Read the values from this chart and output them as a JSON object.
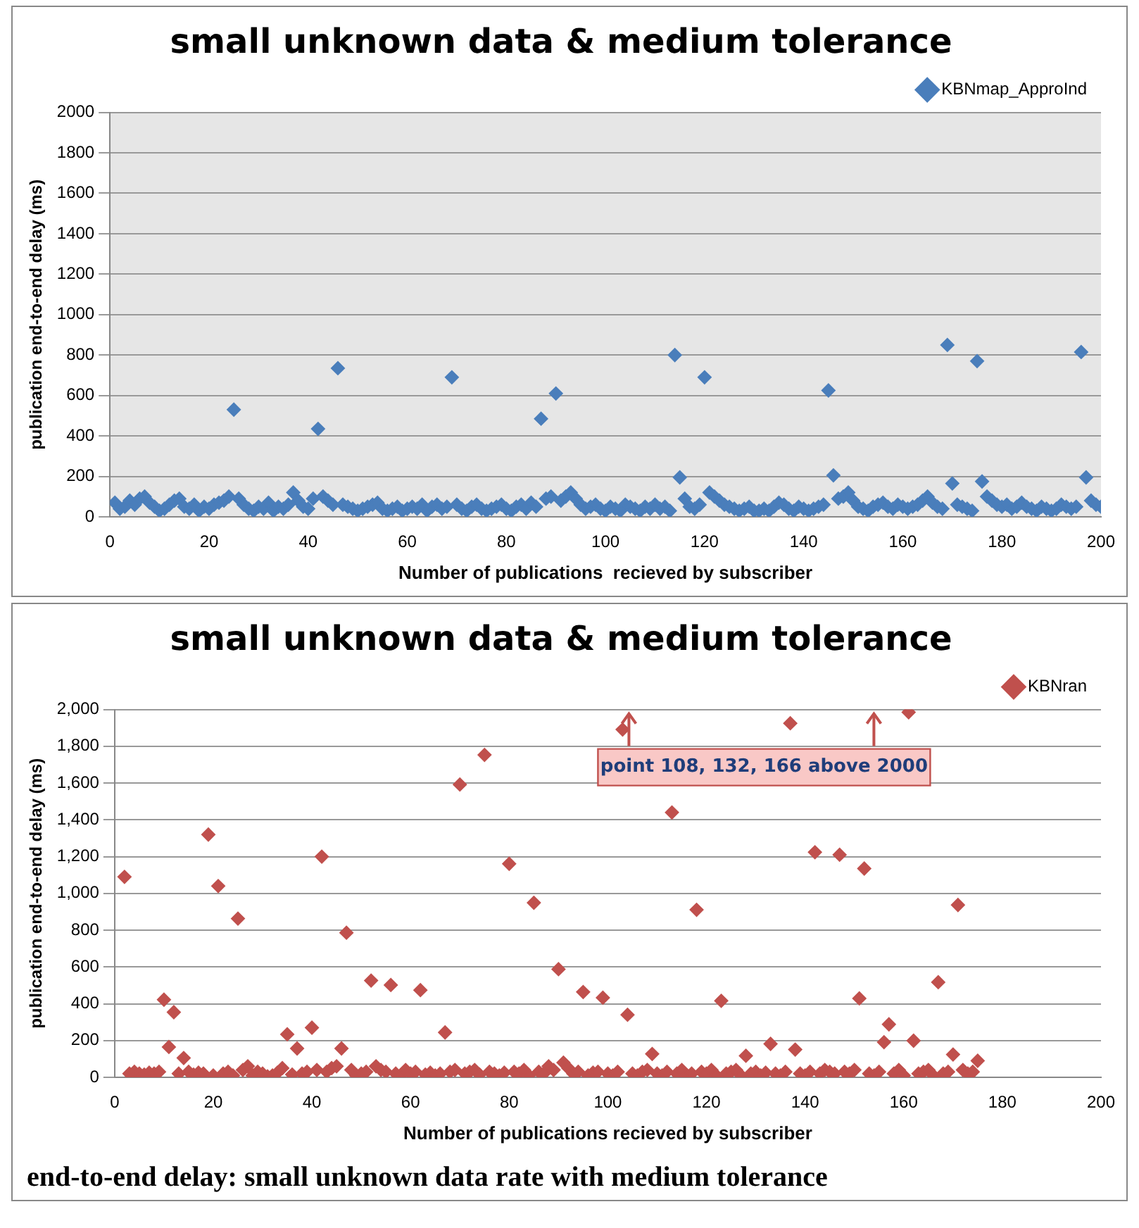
{
  "chart_data": [
    {
      "type": "scatter",
      "title": "small unknown data & medium tolerance",
      "xlabel": "Number of publications  recieved by subscriber",
      "ylabel": "publication end-to-end delay (ms)",
      "xlim": [
        0,
        200
      ],
      "xticks": [
        0,
        20,
        40,
        60,
        80,
        100,
        120,
        140,
        160,
        180,
        200
      ],
      "ylim": [
        0,
        2000
      ],
      "yticks": [
        0,
        200,
        400,
        600,
        800,
        1000,
        1200,
        1400,
        1600,
        1800,
        2000
      ],
      "grid": "y",
      "legend": "top right",
      "marker": "diamond",
      "series": [
        {
          "name": "KBNmap_ApproInd",
          "color": "#4a7ebb",
          "x": [
            1,
            2,
            3,
            4,
            5,
            6,
            7,
            8,
            9,
            10,
            11,
            12,
            13,
            14,
            15,
            16,
            17,
            18,
            19,
            20,
            21,
            22,
            23,
            24,
            25,
            26,
            27,
            28,
            29,
            30,
            31,
            32,
            33,
            34,
            35,
            36,
            37,
            38,
            39,
            40,
            41,
            42,
            43,
            44,
            45,
            46,
            47,
            48,
            49,
            50,
            51,
            52,
            53,
            54,
            55,
            56,
            57,
            58,
            59,
            60,
            61,
            62,
            63,
            64,
            65,
            66,
            67,
            68,
            69,
            70,
            71,
            72,
            73,
            74,
            75,
            76,
            77,
            78,
            79,
            80,
            81,
            82,
            83,
            84,
            85,
            86,
            87,
            88,
            89,
            90,
            91,
            92,
            93,
            94,
            95,
            96,
            97,
            98,
            99,
            100,
            101,
            102,
            103,
            104,
            105,
            106,
            107,
            108,
            109,
            110,
            111,
            112,
            113,
            114,
            115,
            116,
            117,
            118,
            119,
            120,
            121,
            122,
            123,
            124,
            125,
            126,
            127,
            128,
            129,
            130,
            131,
            132,
            133,
            134,
            135,
            136,
            137,
            138,
            139,
            140,
            141,
            142,
            143,
            144,
            145,
            146,
            147,
            148,
            149,
            150,
            151,
            152,
            153,
            154,
            155,
            156,
            157,
            158,
            159,
            160,
            161,
            162,
            163,
            164,
            165,
            166,
            167,
            168,
            169,
            170,
            171,
            172,
            173,
            174,
            175,
            176,
            177,
            178,
            179,
            180,
            181,
            182,
            183,
            184,
            185,
            186,
            187,
            188,
            189,
            190,
            191,
            192,
            193,
            194,
            195,
            196,
            197,
            198,
            199,
            200
          ],
          "values": [
            70,
            40,
            50,
            80,
            60,
            90,
            100,
            70,
            50,
            30,
            40,
            60,
            80,
            90,
            50,
            40,
            60,
            30,
            50,
            40,
            60,
            70,
            80,
            100,
            530,
            90,
            60,
            40,
            30,
            50,
            40,
            70,
            30,
            50,
            40,
            60,
            120,
            80,
            50,
            40,
            90,
            435,
            100,
            80,
            60,
            735,
            60,
            50,
            40,
            30,
            40,
            50,
            60,
            70,
            40,
            30,
            40,
            50,
            30,
            40,
            50,
            40,
            60,
            30,
            50,
            60,
            40,
            50,
            690,
            60,
            40,
            30,
            50,
            60,
            40,
            30,
            40,
            50,
            60,
            40,
            30,
            50,
            60,
            40,
            70,
            50,
            485,
            90,
            100,
            610,
            80,
            100,
            120,
            90,
            60,
            40,
            50,
            60,
            40,
            30,
            50,
            40,
            30,
            60,
            50,
            40,
            30,
            50,
            40,
            60,
            40,
            50,
            30,
            800,
            195,
            90,
            50,
            40,
            60,
            690,
            120,
            100,
            80,
            60,
            50,
            40,
            30,
            40,
            50,
            30,
            30,
            40,
            30,
            50,
            70,
            60,
            40,
            30,
            50,
            40,
            30,
            40,
            50,
            60,
            625,
            205,
            90,
            100,
            120,
            80,
            50,
            40,
            30,
            50,
            60,
            70,
            50,
            40,
            60,
            50,
            40,
            50,
            60,
            80,
            100,
            70,
            50,
            40,
            850,
            165,
            60,
            50,
            40,
            30,
            770,
            175,
            100,
            80,
            60,
            50,
            60,
            40,
            50,
            70,
            50,
            40,
            30,
            50,
            40,
            30,
            40,
            60,
            50,
            40,
            50,
            815,
            195,
            80,
            60,
            50
          ]
        }
      ]
    },
    {
      "type": "scatter",
      "title": "small unknown data & medium tolerance",
      "xlabel": "Number of publications recieved by subscriber",
      "ylabel": "publication end-to-end delay (ms)",
      "xlim": [
        0,
        200
      ],
      "xticks": [
        0,
        20,
        40,
        60,
        80,
        100,
        120,
        140,
        160,
        180,
        200
      ],
      "ylim": [
        0,
        2000
      ],
      "yticks": [
        0,
        200,
        400,
        600,
        800,
        {
          "value": 1000,
          "label": "1,000"
        },
        {
          "value": 1200,
          "label": "1,200"
        },
        {
          "value": 1400,
          "label": "1,400"
        },
        {
          "value": 1600,
          "label": "1,600"
        },
        {
          "value": 1800,
          "label": "1,800"
        },
        {
          "value": 2000,
          "label": "2,000"
        }
      ],
      "grid": "y",
      "legend": "top right",
      "marker": "diamond",
      "annotations": [
        "point 108, 132, 166 above 2000",
        "end-to-end delay: small unknown data rate with medium tolerance"
      ],
      "series": [
        {
          "name": "KBNran",
          "color": "#c0504d",
          "x": [
            2,
            3,
            4,
            5,
            6,
            7,
            8,
            9,
            10,
            11,
            12,
            13,
            14,
            15,
            16,
            17,
            18,
            19,
            20,
            21,
            22,
            23,
            24,
            25,
            26,
            27,
            28,
            29,
            30,
            31,
            32,
            33,
            34,
            35,
            36,
            37,
            38,
            39,
            40,
            41,
            42,
            43,
            44,
            45,
            46,
            47,
            48,
            49,
            50,
            51,
            52,
            53,
            54,
            55,
            56,
            57,
            58,
            59,
            60,
            61,
            62,
            63,
            64,
            65,
            66,
            67,
            68,
            69,
            70,
            71,
            72,
            73,
            74,
            75,
            76,
            77,
            78,
            79,
            80,
            81,
            82,
            83,
            84,
            85,
            86,
            87,
            88,
            89,
            90,
            91,
            92,
            93,
            94,
            95,
            96,
            97,
            98,
            99,
            100,
            101,
            102,
            103,
            104,
            105,
            106,
            107,
            108,
            109,
            110,
            111,
            112,
            113,
            114,
            115,
            116,
            117,
            118,
            119,
            120,
            121,
            122,
            123,
            124,
            125,
            126,
            127,
            128,
            129,
            130,
            131,
            132,
            133,
            134,
            135,
            136,
            137,
            138,
            139,
            140,
            141,
            142,
            143,
            144,
            145,
            146,
            147,
            148,
            149,
            150,
            151,
            152,
            153,
            154,
            155,
            156,
            157,
            158,
            159,
            160,
            161,
            162,
            163,
            164,
            165,
            166,
            167,
            168,
            169,
            170,
            171,
            172,
            173,
            174,
            175
          ],
          "values": [
            1090,
            20,
            30,
            20,
            15,
            25,
            20,
            30,
            422,
            165,
            354,
            20,
            105,
            30,
            15,
            25,
            20,
            1320,
            10,
            1040,
            20,
            30,
            10,
            863,
            40,
            60,
            10,
            30,
            20,
            5,
            10,
            25,
            50,
            234,
            15,
            157,
            20,
            30,
            270,
            40,
            1200,
            30,
            50,
            60,
            157,
            786,
            40,
            10,
            20,
            30,
            526,
            60,
            40,
            30,
            502,
            20,
            10,
            40,
            20,
            30,
            474,
            15,
            25,
            10,
            20,
            244,
            30,
            40,
            1592,
            20,
            30,
            40,
            15,
            1753,
            30,
            20,
            10,
            25,
            1161,
            30,
            20,
            40,
            10,
            949,
            30,
            20,
            60,
            40,
            588,
            80,
            50,
            20,
            30,
            464,
            10,
            25,
            30,
            433,
            20,
            10,
            30,
            1891,
            340,
            20,
            10,
            30,
            40,
            127,
            20,
            10,
            30,
            1440,
            20,
            40,
            10,
            20,
            911,
            30,
            20,
            40,
            10,
            416,
            20,
            30,
            40,
            10,
            117,
            20,
            30,
            10,
            25,
            182,
            20,
            10,
            30,
            1925,
            151,
            20,
            10,
            30,
            1224,
            20,
            40,
            30,
            20,
            1210,
            30,
            20,
            40,
            429,
            1135,
            20,
            10,
            30,
            191,
            288,
            20,
            40,
            10,
            1985,
            199,
            20,
            30,
            40,
            10,
            517,
            20,
            30,
            124,
            937,
            40,
            20,
            30,
            90
          ]
        }
      ]
    }
  ]
}
